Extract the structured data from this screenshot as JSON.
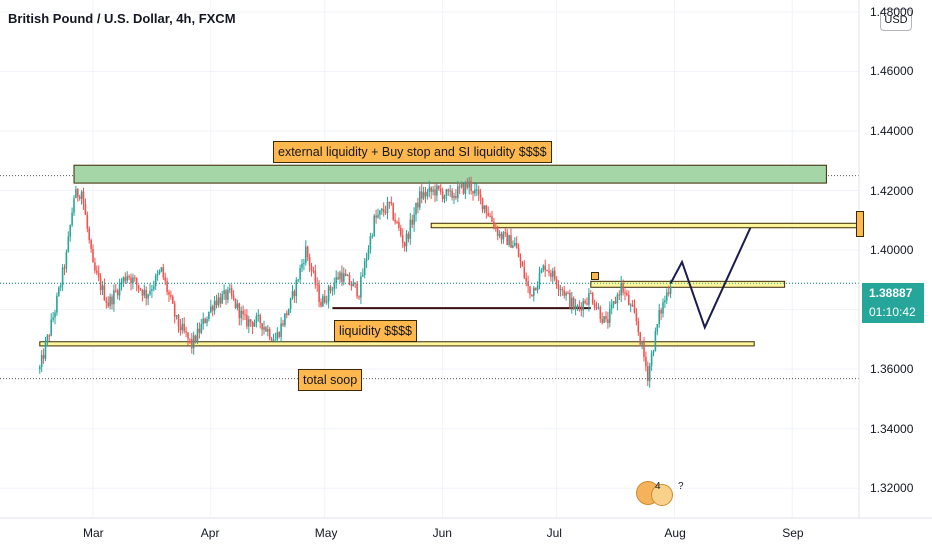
{
  "header": {
    "title": "British Pound / U.S. Dollar, 4h, FXCM",
    "currency_button": "USD"
  },
  "price_tag": {
    "price": "1.38887",
    "countdown": "01:10:42"
  },
  "annotations": {
    "external": "external liquidity + Buy stop and SI liquidity $$$$",
    "liquidity": "liquidity $$$$",
    "total": "total soop",
    "badge_count": "4",
    "badge_q": "?"
  },
  "colors": {
    "up": "#26a69a",
    "down": "#ef5350",
    "zone_green": "#a5d6a7",
    "zone_yellow": "#fff59d",
    "label_bg": "#ffb84d",
    "projection": "#1a1a4e"
  },
  "chart_data": {
    "type": "candlestick",
    "title": "British Pound / U.S. Dollar, 4h, FXCM",
    "y_ticks": [
      "1.48000",
      "1.46000",
      "1.44000",
      "1.42000",
      "1.40000",
      "1.38000",
      "1.36000",
      "1.34000",
      "1.32000"
    ],
    "x_ticks": [
      "Mar",
      "Apr",
      "May",
      "Jun",
      "Jul",
      "Aug",
      "Sep"
    ],
    "ylim": [
      1.31,
      1.484
    ],
    "last_price": 1.38887,
    "price_path": [
      [
        "Feb 15",
        1.36
      ],
      [
        "Feb 19",
        1.38
      ],
      [
        "Feb 22",
        1.398
      ],
      [
        "Feb 24",
        1.418
      ],
      [
        "Feb 26",
        1.42
      ],
      [
        "Mar 1",
        1.394
      ],
      [
        "Mar 5",
        1.382
      ],
      [
        "Mar 10",
        1.392
      ],
      [
        "Mar 15",
        1.385
      ],
      [
        "Mar 19",
        1.393
      ],
      [
        "Mar 23",
        1.376
      ],
      [
        "Mar 27",
        1.368
      ],
      [
        "Apr 2",
        1.383
      ],
      [
        "Apr 6",
        1.385
      ],
      [
        "Apr 10",
        1.376
      ],
      [
        "Apr 14",
        1.376
      ],
      [
        "Apr 18",
        1.37
      ],
      [
        "Apr 22",
        1.382
      ],
      [
        "Apr 26",
        1.4
      ],
      [
        "Apr 30",
        1.382
      ],
      [
        "May 5",
        1.392
      ],
      [
        "May 10",
        1.386
      ],
      [
        "May 14",
        1.41
      ],
      [
        "May 18",
        1.415
      ],
      [
        "May 22",
        1.402
      ],
      [
        "May 26",
        1.418
      ],
      [
        "May 30",
        1.42
      ],
      [
        "Jun 3",
        1.418
      ],
      [
        "Jun 8",
        1.422
      ],
      [
        "Jun 12",
        1.415
      ],
      [
        "Jun 16",
        1.405
      ],
      [
        "Jun 20",
        1.402
      ],
      [
        "Jun 24",
        1.385
      ],
      [
        "Jun 28",
        1.395
      ],
      [
        "Jul 2",
        1.388
      ],
      [
        "Jul 6",
        1.38
      ],
      [
        "Jul 10",
        1.385
      ],
      [
        "Jul 14",
        1.375
      ],
      [
        "Jul 18",
        1.388
      ],
      [
        "Jul 22",
        1.376
      ],
      [
        "Jul 25",
        1.358
      ],
      [
        "Jul 28",
        1.378
      ],
      [
        "Jul 31",
        1.389
      ]
    ],
    "levels": [
      {
        "name": "external",
        "from": "Feb 24",
        "to": "Sep 10",
        "low": 1.4225,
        "high": 1.4285,
        "fill": "#a5d6a7"
      },
      {
        "name": "upper",
        "from": "May 29",
        "to": "Sep 30",
        "low": 1.4075,
        "high": 1.409,
        "fill": "#fff59d"
      },
      {
        "name": "mid",
        "from": "Jul 10",
        "to": "Aug 30",
        "low": 1.3875,
        "high": 1.3895,
        "fill": "#fff59d"
      },
      {
        "name": "liquidity_line",
        "from": "May 3",
        "to": "Jul 10",
        "low": 1.3805,
        "high": 1.3805
      },
      {
        "name": "lower",
        "from": "Feb 15",
        "to": "Aug 22",
        "low": 1.3678,
        "high": 1.3692,
        "fill": "#fff59d"
      }
    ],
    "dotted_levels": [
      1.425,
      1.3888,
      1.3568
    ],
    "projection": [
      [
        "Jul 31",
        1.3888
      ],
      [
        "Aug 3",
        1.396
      ],
      [
        "Aug 9",
        1.374
      ],
      [
        "Aug 21",
        1.4075
      ]
    ]
  }
}
